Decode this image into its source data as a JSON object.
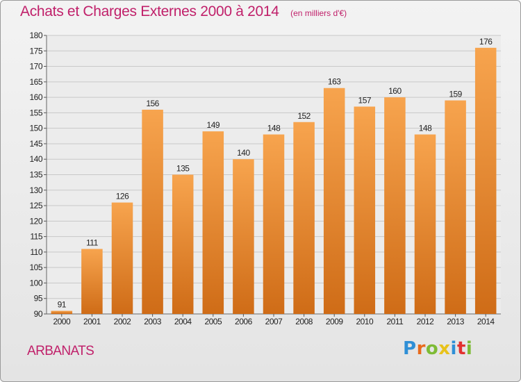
{
  "title": "Achats et Charges Externes 2000 à 2014",
  "subtitle": "(en milliers d'€)",
  "commune": "ARBANATS",
  "logo": {
    "text": "Proxiti",
    "letter_colors": [
      "#2f8fd6",
      "#e86a1c",
      "#7dbb35",
      "#e8c21a",
      "#2f8fd6",
      "#e2312f",
      "#7dbb35"
    ]
  },
  "colors": {
    "bar_top": "#f7a44e",
    "bar_bottom": "#cf6c17",
    "title": "#c0206a",
    "grid": "#c8c8c8"
  },
  "chart_data": {
    "type": "bar",
    "categories": [
      "2000",
      "2001",
      "2002",
      "2003",
      "2004",
      "2005",
      "2006",
      "2007",
      "2008",
      "2009",
      "2010",
      "2011",
      "2012",
      "2013",
      "2014"
    ],
    "values": [
      91,
      111,
      126,
      156,
      135,
      149,
      140,
      148,
      152,
      163,
      157,
      160,
      148,
      159,
      176
    ],
    "ylim": [
      90,
      180
    ],
    "yticks": [
      90,
      95,
      100,
      105,
      110,
      115,
      120,
      125,
      130,
      135,
      140,
      145,
      150,
      155,
      160,
      165,
      170,
      175,
      180
    ],
    "grid": true
  }
}
